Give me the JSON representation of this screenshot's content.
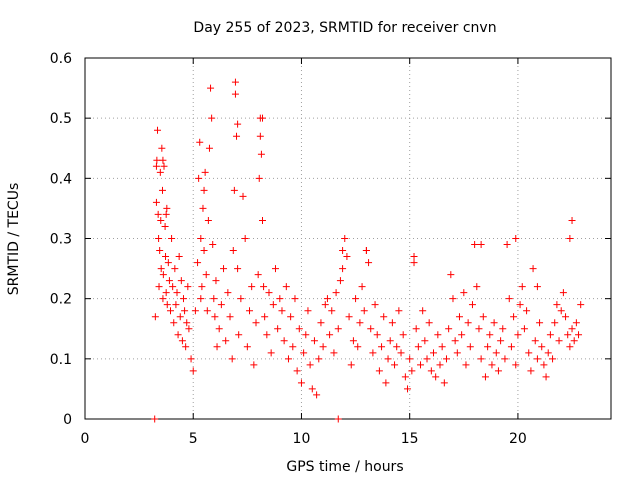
{
  "chart_data": {
    "type": "scatter",
    "title": "Day 255 of 2023, SRMTID for receiver cnvn",
    "xlabel": "GPS time / hours",
    "ylabel": "SRMTID / TECUs",
    "xlim": [
      0,
      24.3
    ],
    "ylim": [
      0,
      0.6
    ],
    "xticks": [
      0,
      5,
      10,
      15,
      20
    ],
    "xtick_labels": [
      "0",
      "5",
      "10",
      "15",
      "20"
    ],
    "yticks": [
      0,
      0.1,
      0.2,
      0.3,
      0.4,
      0.5,
      0.6
    ],
    "ytick_labels": [
      "0",
      "0.1",
      "0.2",
      "0.3",
      "0.4",
      "0.5",
      "0.6"
    ],
    "grid": true,
    "marker": "+",
    "series_color": "#ff0000",
    "series": [
      {
        "name": "SRMTID",
        "x": [
          3.22,
          3.25,
          3.3,
          3.3,
          3.32,
          3.35,
          3.38,
          3.4,
          3.42,
          3.45,
          3.48,
          3.5,
          3.52,
          3.55,
          3.58,
          3.6,
          3.62,
          3.65,
          3.7,
          3.72,
          3.75,
          3.78,
          3.8,
          3.85,
          3.9,
          3.95,
          4.0,
          4.05,
          4.1,
          4.15,
          4.2,
          4.25,
          4.3,
          4.35,
          4.4,
          4.45,
          4.5,
          4.55,
          4.6,
          4.65,
          4.7,
          4.75,
          4.8,
          4.9,
          5.0,
          5.1,
          5.2,
          5.25,
          5.3,
          5.35,
          5.4,
          5.45,
          5.5,
          5.55,
          5.6,
          5.65,
          5.7,
          5.75,
          5.8,
          5.85,
          5.9,
          5.95,
          6.0,
          6.05,
          6.1,
          6.2,
          6.3,
          6.4,
          6.5,
          6.6,
          6.7,
          6.8,
          6.85,
          6.9,
          6.95,
          7.0,
          7.05,
          7.1,
          7.2,
          7.3,
          7.4,
          7.5,
          7.6,
          7.7,
          7.8,
          7.9,
          8.0,
          8.05,
          8.1,
          8.15,
          8.2,
          8.25,
          8.3,
          8.4,
          8.5,
          8.6,
          8.7,
          8.8,
          8.9,
          9.0,
          9.1,
          9.2,
          9.3,
          9.4,
          9.5,
          9.6,
          9.7,
          9.8,
          9.9,
          10.0,
          10.1,
          10.2,
          10.3,
          10.4,
          10.5,
          10.6,
          10.7,
          10.8,
          10.9,
          11.0,
          11.1,
          11.2,
          11.3,
          11.4,
          11.5,
          11.6,
          11.7,
          11.8,
          11.9,
          12.0,
          12.1,
          12.2,
          12.3,
          12.4,
          12.5,
          12.6,
          12.7,
          12.8,
          12.9,
          13.0,
          13.1,
          13.2,
          13.3,
          13.4,
          13.5,
          13.6,
          13.7,
          13.8,
          13.9,
          14.0,
          14.1,
          14.2,
          14.3,
          14.4,
          14.5,
          14.6,
          14.7,
          14.8,
          14.9,
          15.0,
          15.1,
          15.2,
          15.3,
          15.4,
          15.5,
          15.6,
          15.7,
          15.8,
          15.9,
          16.0,
          16.1,
          16.2,
          16.3,
          16.4,
          16.5,
          16.6,
          16.7,
          16.8,
          16.9,
          17.0,
          17.1,
          17.2,
          17.3,
          17.4,
          17.5,
          17.6,
          17.7,
          17.8,
          17.9,
          18.0,
          18.1,
          18.2,
          18.3,
          18.4,
          18.5,
          18.6,
          18.7,
          18.8,
          18.9,
          19.0,
          19.1,
          19.2,
          19.3,
          19.4,
          19.5,
          19.6,
          19.7,
          19.8,
          19.9,
          20.0,
          20.1,
          20.2,
          20.3,
          20.4,
          20.5,
          20.6,
          20.7,
          20.8,
          20.9,
          21.0,
          21.1,
          21.2,
          21.3,
          21.4,
          21.5,
          21.6,
          21.7,
          21.8,
          21.9,
          22.0,
          22.1,
          22.2,
          22.3,
          22.4,
          22.5,
          22.6,
          22.7,
          22.8,
          22.9,
          3.6,
          3.75,
          5.35,
          5.5,
          6.95,
          7.05,
          8.1,
          8.2,
          11.9,
          13.0,
          15.2,
          18.3,
          19.9,
          20.9,
          22.4,
          22.5,
          11.7
        ],
        "y": [
          0.0,
          0.17,
          0.42,
          0.36,
          0.43,
          0.48,
          0.34,
          0.3,
          0.22,
          0.28,
          0.41,
          0.33,
          0.25,
          0.45,
          0.38,
          0.2,
          0.24,
          0.42,
          0.32,
          0.27,
          0.21,
          0.35,
          0.19,
          0.26,
          0.23,
          0.18,
          0.3,
          0.22,
          0.16,
          0.25,
          0.19,
          0.21,
          0.14,
          0.27,
          0.17,
          0.23,
          0.13,
          0.2,
          0.18,
          0.12,
          0.16,
          0.22,
          0.15,
          0.1,
          0.08,
          0.18,
          0.26,
          0.4,
          0.46,
          0.3,
          0.22,
          0.35,
          0.28,
          0.41,
          0.24,
          0.18,
          0.33,
          0.45,
          0.55,
          0.5,
          0.29,
          0.2,
          0.17,
          0.23,
          0.12,
          0.15,
          0.19,
          0.25,
          0.13,
          0.21,
          0.17,
          0.1,
          0.28,
          0.38,
          0.56,
          0.47,
          0.25,
          0.14,
          0.2,
          0.37,
          0.3,
          0.12,
          0.18,
          0.22,
          0.09,
          0.16,
          0.24,
          0.4,
          0.5,
          0.44,
          0.33,
          0.22,
          0.17,
          0.14,
          0.21,
          0.11,
          0.19,
          0.25,
          0.15,
          0.2,
          0.18,
          0.13,
          0.22,
          0.1,
          0.17,
          0.12,
          0.2,
          0.08,
          0.15,
          0.06,
          0.11,
          0.14,
          0.18,
          0.09,
          0.05,
          0.13,
          0.04,
          0.1,
          0.16,
          0.12,
          0.19,
          0.2,
          0.14,
          0.18,
          0.11,
          0.21,
          0.15,
          0.23,
          0.25,
          0.3,
          0.27,
          0.17,
          0.09,
          0.13,
          0.2,
          0.12,
          0.16,
          0.22,
          0.18,
          0.28,
          0.26,
          0.15,
          0.11,
          0.19,
          0.14,
          0.08,
          0.12,
          0.17,
          0.06,
          0.1,
          0.13,
          0.16,
          0.09,
          0.12,
          0.18,
          0.11,
          0.14,
          0.07,
          0.05,
          0.1,
          0.08,
          0.27,
          0.15,
          0.12,
          0.09,
          0.18,
          0.13,
          0.1,
          0.16,
          0.08,
          0.11,
          0.07,
          0.14,
          0.09,
          0.12,
          0.06,
          0.1,
          0.15,
          0.24,
          0.2,
          0.13,
          0.11,
          0.17,
          0.14,
          0.21,
          0.09,
          0.16,
          0.12,
          0.19,
          0.29,
          0.22,
          0.15,
          0.1,
          0.17,
          0.07,
          0.12,
          0.14,
          0.09,
          0.16,
          0.11,
          0.08,
          0.13,
          0.15,
          0.1,
          0.29,
          0.2,
          0.12,
          0.17,
          0.09,
          0.14,
          0.19,
          0.22,
          0.15,
          0.18,
          0.11,
          0.08,
          0.25,
          0.13,
          0.1,
          0.16,
          0.12,
          0.09,
          0.07,
          0.11,
          0.14,
          0.1,
          0.16,
          0.19,
          0.13,
          0.18,
          0.21,
          0.17,
          0.14,
          0.12,
          0.15,
          0.13,
          0.16,
          0.14,
          0.19,
          0.43,
          0.34,
          0.2,
          0.38,
          0.54,
          0.49,
          0.47,
          0.5,
          0.28,
          0.28,
          0.26,
          0.29,
          0.3,
          0.22,
          0.3,
          0.33,
          0.0
        ]
      }
    ]
  }
}
